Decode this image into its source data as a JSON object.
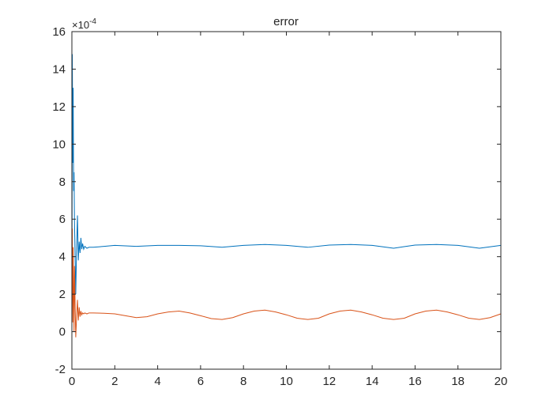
{
  "chart_data": {
    "type": "line",
    "title": "error",
    "xlabel": "",
    "ylabel": "",
    "xlim": [
      0,
      20
    ],
    "ylim": [
      -2,
      16
    ],
    "y_exponent_label": "×10",
    "y_exponent_power": "-4",
    "x_ticks": [
      0,
      2,
      4,
      6,
      8,
      10,
      12,
      14,
      16,
      18,
      20
    ],
    "x_tick_labels": [
      "0",
      "2",
      "4",
      "6",
      "8",
      "10",
      "12",
      "14",
      "16",
      "18",
      "20"
    ],
    "y_ticks": [
      -2,
      0,
      2,
      4,
      6,
      8,
      10,
      12,
      14,
      16
    ],
    "y_tick_labels": [
      "-2",
      "0",
      "2",
      "4",
      "6",
      "8",
      "10",
      "12",
      "14",
      "16"
    ],
    "grid": false,
    "legend": "none",
    "series": [
      {
        "color": "#0072BD",
        "x": [
          0,
          0.02,
          0.04,
          0.06,
          0.08,
          0.1,
          0.12,
          0.15,
          0.18,
          0.22,
          0.26,
          0.3,
          0.34,
          0.38,
          0.42,
          0.46,
          0.5,
          0.55,
          0.6,
          0.7,
          0.8,
          1,
          1.5,
          2,
          3,
          4,
          5,
          6,
          7,
          8,
          9,
          10,
          11,
          12,
          13,
          14,
          15,
          16,
          17,
          18,
          19,
          20
        ],
        "y": [
          0,
          14.8,
          9.0,
          13.0,
          7.5,
          8.5,
          6.0,
          4.0,
          2.0,
          4.5,
          6.2,
          3.8,
          4.8,
          4.2,
          5.0,
          4.4,
          4.7,
          4.4,
          4.55,
          4.45,
          4.5,
          4.5,
          4.55,
          4.6,
          4.55,
          4.6,
          4.6,
          4.58,
          4.5,
          4.6,
          4.65,
          4.6,
          4.5,
          4.62,
          4.65,
          4.6,
          4.45,
          4.62,
          4.65,
          4.6,
          4.45,
          4.6
        ]
      },
      {
        "color": "#D95319",
        "x": [
          0,
          0.02,
          0.04,
          0.06,
          0.08,
          0.1,
          0.12,
          0.15,
          0.18,
          0.22,
          0.26,
          0.3,
          0.34,
          0.38,
          0.42,
          0.46,
          0.5,
          0.55,
          0.6,
          0.7,
          0.8,
          1,
          1.5,
          2,
          2.5,
          3,
          3.5,
          4,
          4.5,
          5,
          5.5,
          6,
          6.5,
          7,
          7.5,
          8,
          8.5,
          9,
          9.5,
          10,
          10.5,
          11,
          11.5,
          12,
          12.5,
          13,
          13.5,
          14,
          14.5,
          15,
          15.5,
          16,
          16.5,
          17,
          17.5,
          18,
          18.5,
          19,
          19.5,
          20
        ],
        "y": [
          0,
          5.5,
          0.5,
          4.5,
          2.0,
          0.0,
          3.5,
          1.5,
          -0.3,
          0.8,
          1.7,
          0.6,
          1.3,
          0.8,
          1.1,
          0.9,
          1.0,
          0.95,
          1.0,
          0.95,
          1.0,
          1.0,
          0.98,
          0.95,
          0.85,
          0.75,
          0.8,
          0.95,
          1.05,
          1.1,
          1.0,
          0.85,
          0.7,
          0.65,
          0.75,
          0.95,
          1.1,
          1.15,
          1.05,
          0.9,
          0.72,
          0.65,
          0.72,
          0.95,
          1.1,
          1.15,
          1.05,
          0.9,
          0.72,
          0.65,
          0.72,
          0.95,
          1.1,
          1.15,
          1.05,
          0.9,
          0.72,
          0.65,
          0.75,
          0.95
        ]
      }
    ]
  }
}
